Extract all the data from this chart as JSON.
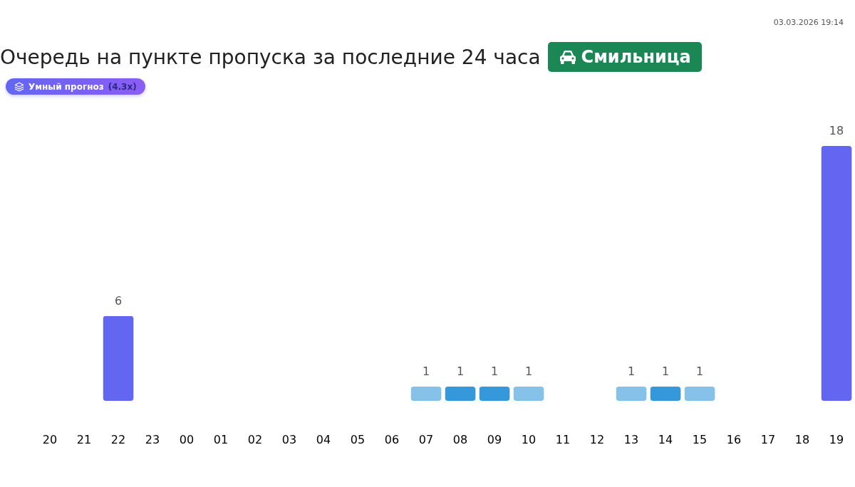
{
  "chart_data": {
    "type": "bar",
    "title": "Очередь на пункте пропуска за последние 24 часа",
    "annotations": [
      "Смильница",
      "Умный прогноз",
      "(4.3x)",
      "03.03.2026 19:14"
    ],
    "categories": [
      "20",
      "21",
      "22",
      "23",
      "00",
      "01",
      "02",
      "03",
      "04",
      "05",
      "06",
      "07",
      "08",
      "09",
      "10",
      "11",
      "12",
      "13",
      "14",
      "15",
      "16",
      "17",
      "18",
      "19"
    ],
    "values": [
      null,
      null,
      6,
      null,
      null,
      null,
      null,
      null,
      null,
      null,
      null,
      1,
      1,
      1,
      1,
      null,
      null,
      1,
      1,
      1,
      null,
      null,
      null,
      18
    ],
    "colors": [
      null,
      null,
      "#6366f1",
      null,
      null,
      null,
      null,
      null,
      null,
      null,
      null,
      "#85c1e9",
      "#3498db",
      "#3498db",
      "#85c1e9",
      null,
      null,
      "#85c1e9",
      "#3498db",
      "#85c1e9",
      null,
      null,
      null,
      "#6366f1"
    ],
    "data_labels": true
  }
}
